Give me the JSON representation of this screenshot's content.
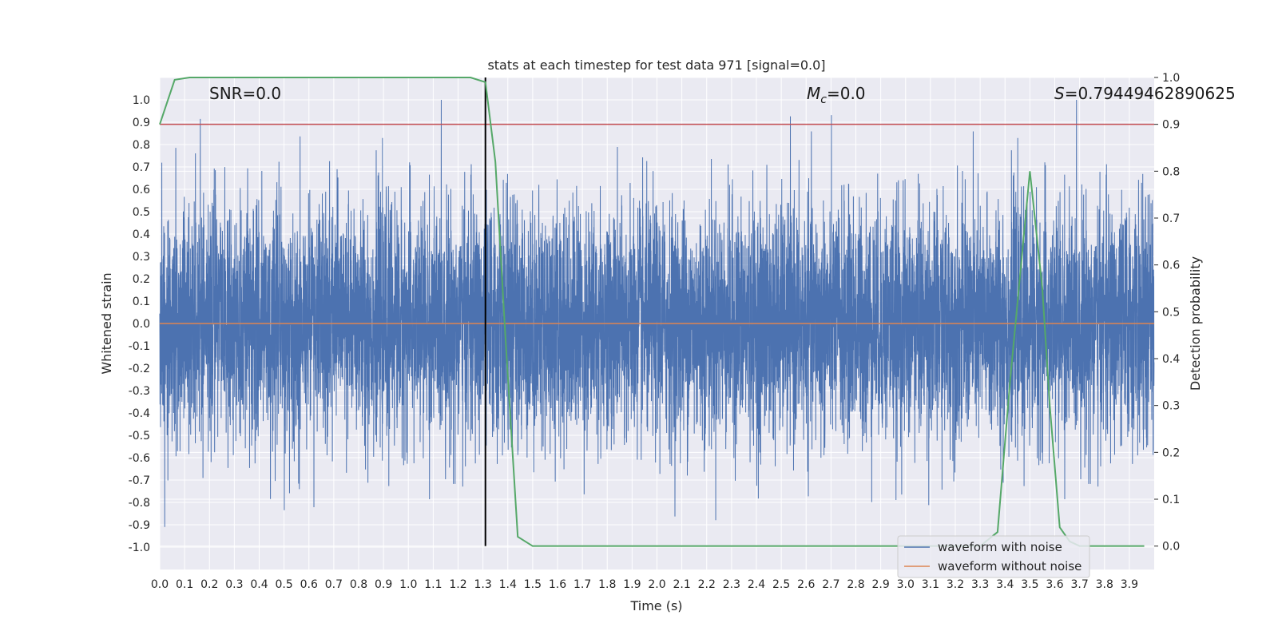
{
  "chart_data": {
    "type": "line",
    "title": "stats at each timestep for test data 971 [signal=0.0]",
    "xlabel": "Time (s)",
    "ylabel": "Whitened strain",
    "y2label": "Detection probability",
    "xlim": [
      0.0,
      4.0
    ],
    "ylim": [
      -1.1,
      1.1
    ],
    "y2lim": [
      -0.05,
      1.0
    ],
    "x_ticks": [
      "0.0",
      "0.1",
      "0.2",
      "0.3",
      "0.4",
      "0.5",
      "0.6",
      "0.7",
      "0.8",
      "0.9",
      "1.0",
      "1.1",
      "1.2",
      "1.3",
      "1.4",
      "1.5",
      "1.6",
      "1.7",
      "1.8",
      "1.9",
      "2.0",
      "2.1",
      "2.2",
      "2.3",
      "2.4",
      "2.5",
      "2.6",
      "2.7",
      "2.8",
      "2.9",
      "3.0",
      "3.1",
      "3.2",
      "3.3",
      "3.4",
      "3.5",
      "3.6",
      "3.7",
      "3.8",
      "3.9"
    ],
    "y_ticks": [
      "1.0",
      "0.9",
      "0.8",
      "0.7",
      "0.6",
      "0.5",
      "0.4",
      "0.3",
      "0.2",
      "0.1",
      "0.0",
      "-0.1",
      "-0.2",
      "-0.3",
      "-0.4",
      "-0.5",
      "-0.6",
      "-0.7",
      "-0.8",
      "-0.9",
      "-1.0"
    ],
    "y2_ticks": [
      "1.0",
      "0.9",
      "0.8",
      "0.7",
      "0.6",
      "0.5",
      "0.4",
      "0.3",
      "0.2",
      "0.1",
      "0.0"
    ],
    "annotations": {
      "snr": "SNR=0.0",
      "mc_symbol": "M",
      "mc_sub": "c",
      "mc_value": "=0.0",
      "s_symbol": "S",
      "s_value": "=0.79449462890625"
    },
    "threshold": 0.9,
    "peak_time": 1.31,
    "legend": {
      "position": "lower right",
      "entries": [
        "waveform with noise",
        "waveform without noise"
      ]
    },
    "series": [
      {
        "name": "waveform with noise",
        "color": "#4c72b0",
        "style": "noise",
        "sample_rate_hz": 2048,
        "amplitude_range": [
          -0.91,
          1.0
        ]
      },
      {
        "name": "waveform without noise",
        "color": "#dd8452",
        "style": "line",
        "x": [
          0.0,
          4.0
        ],
        "y": [
          0.0,
          0.0
        ]
      },
      {
        "name": "detection probability",
        "axis": "right",
        "color": "#55a868",
        "x": [
          0.0,
          0.06,
          0.12,
          0.2,
          0.5,
          1.0,
          1.25,
          1.31,
          1.35,
          1.39,
          1.44,
          1.5,
          1.6,
          2.0,
          2.5,
          3.0,
          3.3,
          3.37,
          3.42,
          3.5,
          3.55,
          3.58,
          3.62,
          3.66,
          3.7,
          3.8,
          3.96
        ],
        "y": [
          0.9,
          0.995,
          1.0,
          1.0,
          1.0,
          1.0,
          1.0,
          0.99,
          0.82,
          0.45,
          0.02,
          -0.0,
          0.0,
          0.0,
          0.0,
          0.0,
          0.0,
          0.03,
          0.35,
          0.8,
          0.55,
          0.3,
          0.04,
          0.01,
          0.0,
          0.0,
          0.0
        ]
      }
    ]
  },
  "colors": {
    "noise": "#4c72b0",
    "clean": "#dd8452",
    "probability": "#55a868",
    "threshold": "#c44e52",
    "peak": "#000000",
    "plot_bg": "#eaeaf2",
    "grid": "#ffffff"
  }
}
